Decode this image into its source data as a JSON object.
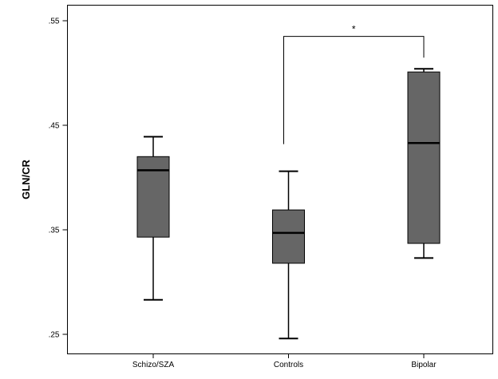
{
  "chart_data": {
    "type": "box",
    "ylabel": "GLN/CR",
    "xlabel": "",
    "title": "",
    "ylim": [
      0.25,
      0.567
    ],
    "yticks": [
      ".55",
      ".45",
      ".35",
      ".25"
    ],
    "ytick_values": [
      0.55,
      0.45,
      0.35,
      0.25
    ],
    "grid": false,
    "categories": [
      "Schizo/SZA",
      "Controls",
      "Bipolar"
    ],
    "boxes": [
      {
        "category": "Schizo/SZA",
        "min": 0.283,
        "q1": 0.343,
        "median": 0.407,
        "q3": 0.42,
        "max": 0.439
      },
      {
        "category": "Controls",
        "min": 0.246,
        "q1": 0.318,
        "median": 0.347,
        "q3": 0.369,
        "max": 0.406
      },
      {
        "category": "Bipolar",
        "min": 0.323,
        "q1": 0.337,
        "median": 0.433,
        "q3": 0.501,
        "max": 0.504
      }
    ],
    "box_color": "#666666",
    "significance": {
      "from": "Controls",
      "to": "Bipolar",
      "label": "*",
      "level": 0.535
    }
  }
}
